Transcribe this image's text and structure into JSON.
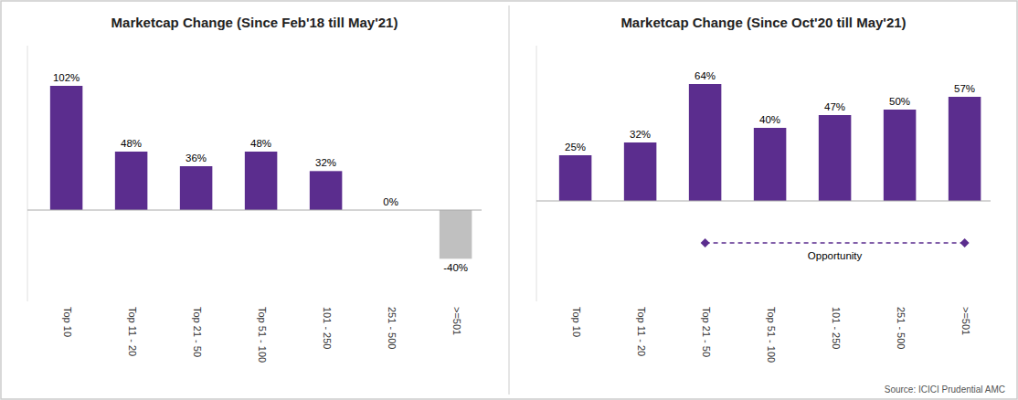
{
  "chart_data": [
    {
      "type": "bar",
      "title": "Marketcap Change (Since Feb'18 till May'21)",
      "categories": [
        "Top 10",
        "Top 11 - 20",
        "Top 21 - 50",
        "Top 51 - 100",
        "101 - 250",
        "251 - 500",
        ">=501"
      ],
      "values": [
        102,
        48,
        36,
        48,
        32,
        0,
        -40
      ],
      "value_labels": [
        "102%",
        "48%",
        "36%",
        "48%",
        "32%",
        "0%",
        "-40%"
      ],
      "colors": [
        "#5B2D8E",
        "#5B2D8E",
        "#5B2D8E",
        "#5B2D8E",
        "#5B2D8E",
        "#5B2D8E",
        "#C0C0C0"
      ],
      "ylim": [
        -75,
        135
      ],
      "data_labels": true,
      "tick_labels": "x",
      "grid": false
    },
    {
      "type": "bar",
      "title": "Marketcap Change (Since Oct'20 till May'21)",
      "categories": [
        "Top 10",
        "Top 11 - 20",
        "Top 21 - 50",
        "Top 51 - 100",
        "101 - 250",
        "251 - 500",
        ">=501"
      ],
      "values": [
        25,
        32,
        64,
        40,
        47,
        50,
        57
      ],
      "value_labels": [
        "25%",
        "32%",
        "64%",
        "40%",
        "47%",
        "50%",
        "57%"
      ],
      "color": "#5B2D8E",
      "ylim": [
        -55,
        85
      ],
      "data_labels": true,
      "tick_labels": "x",
      "grid": false,
      "annotations": [
        {
          "text": "Opportunity",
          "x_from": "Top 21 - 50",
          "x_to": ">=501",
          "y": -23,
          "color": "#5B2D8E"
        }
      ]
    }
  ],
  "source": "Source: ICICI Prudential AMC"
}
